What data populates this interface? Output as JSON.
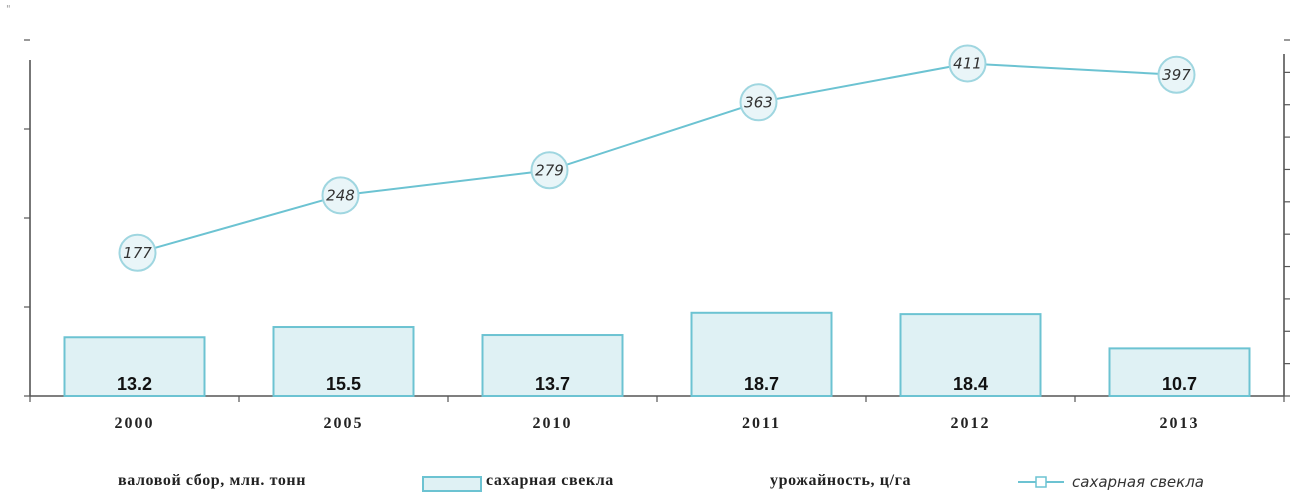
{
  "corner_mark": "\"",
  "chart_data": {
    "type": "bar",
    "categories": [
      "2000",
      "2005",
      "2010",
      "2011",
      "2012",
      "2013"
    ],
    "series": [
      {
        "name": "сахарная свекла",
        "type": "bar",
        "axis": "left",
        "values": [
          13.2,
          15.5,
          13.7,
          18.7,
          18.4,
          10.7
        ]
      },
      {
        "name": "сахарная свекла",
        "type": "line",
        "axis": "right",
        "values": [
          177,
          248,
          279,
          363,
          411,
          397
        ]
      }
    ],
    "ylim_left": [
      0,
      80
    ],
    "ylim_right": [
      0,
      440
    ],
    "grid": false,
    "legend_position": "bottom",
    "colors": {
      "bar_fill": "#dff1f4",
      "bar_stroke": "#6cc3d2",
      "line": "#6cc3d2",
      "marker_fill": "#e9f5f8"
    }
  },
  "legend": {
    "bar_group_label": "валовой сбор, млн. тонн",
    "bar_series_label": "сахарная свекла",
    "line_group_label": "урожайность, ц/га",
    "line_series_label": "сахарная свекла"
  }
}
